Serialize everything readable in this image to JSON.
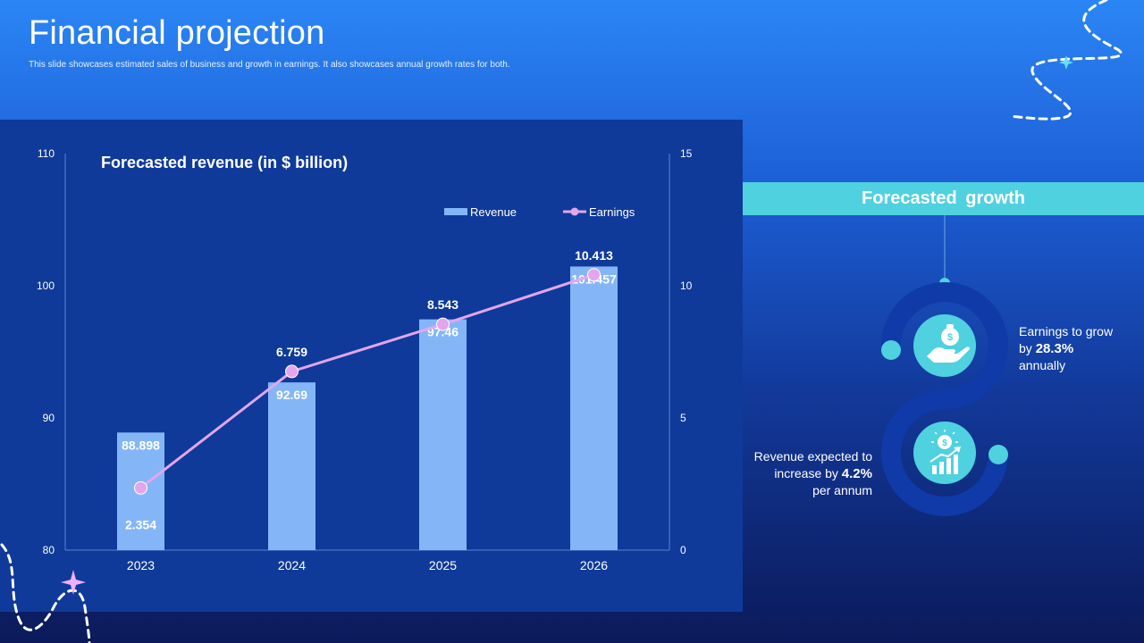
{
  "slide": {
    "title": "Financial projection",
    "subtitle": "This slide showcases estimated sales of business and growth in earnings. It also showcases annual growth rates for both."
  },
  "chart_data": {
    "type": "bar+line",
    "title": "Forecasted revenue (in $ billion)",
    "categories": [
      "2023",
      "2024",
      "2025",
      "2026"
    ],
    "series": [
      {
        "name": "Revenue",
        "type": "bar",
        "axis": "left",
        "values": [
          88.898,
          92.69,
          97.46,
          101.457
        ],
        "labels": [
          "88.898",
          "92.69",
          "97.46",
          "101.457"
        ],
        "color": "#84b6f7"
      },
      {
        "name": "Earnings",
        "type": "line",
        "axis": "right",
        "values": [
          2.354,
          6.759,
          8.543,
          10.413
        ],
        "labels": [
          "2.354",
          "6.759",
          "8.543",
          "10.413"
        ],
        "color": "#e3a6ee"
      }
    ],
    "y_left": {
      "lim": [
        80,
        110
      ],
      "ticks": [
        "80",
        "90",
        "100",
        "110"
      ]
    },
    "y_right": {
      "lim": [
        0,
        15
      ],
      "ticks": [
        "0",
        "5",
        "10",
        "15"
      ]
    },
    "legend": "top-right",
    "grid": false
  },
  "growth": {
    "header": "Forecasted growth",
    "earnings": {
      "prefix": "Earnings to grow",
      "by": "by",
      "value": "28.3%",
      "suffix": "annually"
    },
    "revenue": {
      "line1": "Revenue expected to",
      "prefix": "increase by",
      "value": "4.2%",
      "suffix": "per annum"
    },
    "icons": [
      "money-bag-hand-icon",
      "growth-chart-icon"
    ]
  },
  "colors": {
    "accent": "#4fd1df",
    "ring": "#0f3aa8",
    "panel": "#0f3a9a"
  }
}
